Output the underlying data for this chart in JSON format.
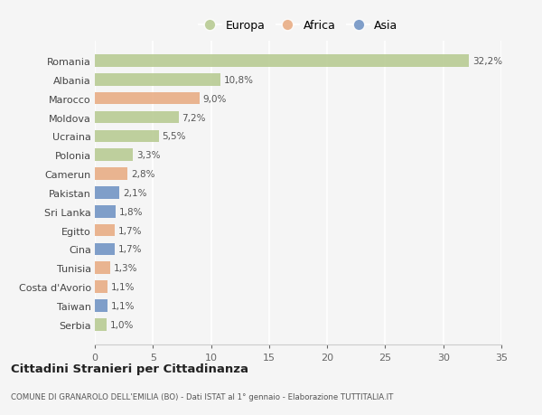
{
  "countries": [
    "Romania",
    "Albania",
    "Marocco",
    "Moldova",
    "Ucraina",
    "Polonia",
    "Camerun",
    "Pakistan",
    "Sri Lanka",
    "Egitto",
    "Cina",
    "Tunisia",
    "Costa d'Avorio",
    "Taiwan",
    "Serbia"
  ],
  "values": [
    32.2,
    10.8,
    9.0,
    7.2,
    5.5,
    3.3,
    2.8,
    2.1,
    1.8,
    1.7,
    1.7,
    1.3,
    1.1,
    1.1,
    1.0
  ],
  "labels": [
    "32,2%",
    "10,8%",
    "9,0%",
    "7,2%",
    "5,5%",
    "3,3%",
    "2,8%",
    "2,1%",
    "1,8%",
    "1,7%",
    "1,7%",
    "1,3%",
    "1,1%",
    "1,1%",
    "1,0%"
  ],
  "continent": [
    "Europa",
    "Europa",
    "Africa",
    "Europa",
    "Europa",
    "Europa",
    "Africa",
    "Asia",
    "Asia",
    "Africa",
    "Asia",
    "Africa",
    "Africa",
    "Asia",
    "Europa"
  ],
  "colors": {
    "Europa": "#b5c98e",
    "Africa": "#e8a97e",
    "Asia": "#6b8fc2"
  },
  "xlim": [
    0,
    35
  ],
  "xticks": [
    0,
    5,
    10,
    15,
    20,
    25,
    30,
    35
  ],
  "background_color": "#f5f5f5",
  "plot_bg_color": "#f5f5f5",
  "grid_color": "#ffffff",
  "title1": "Cittadini Stranieri per Cittadinanza",
  "title2": "COMUNE DI GRANAROLO DELL'EMILIA (BO) - Dati ISTAT al 1° gennaio - Elaborazione TUTTITALIA.IT"
}
